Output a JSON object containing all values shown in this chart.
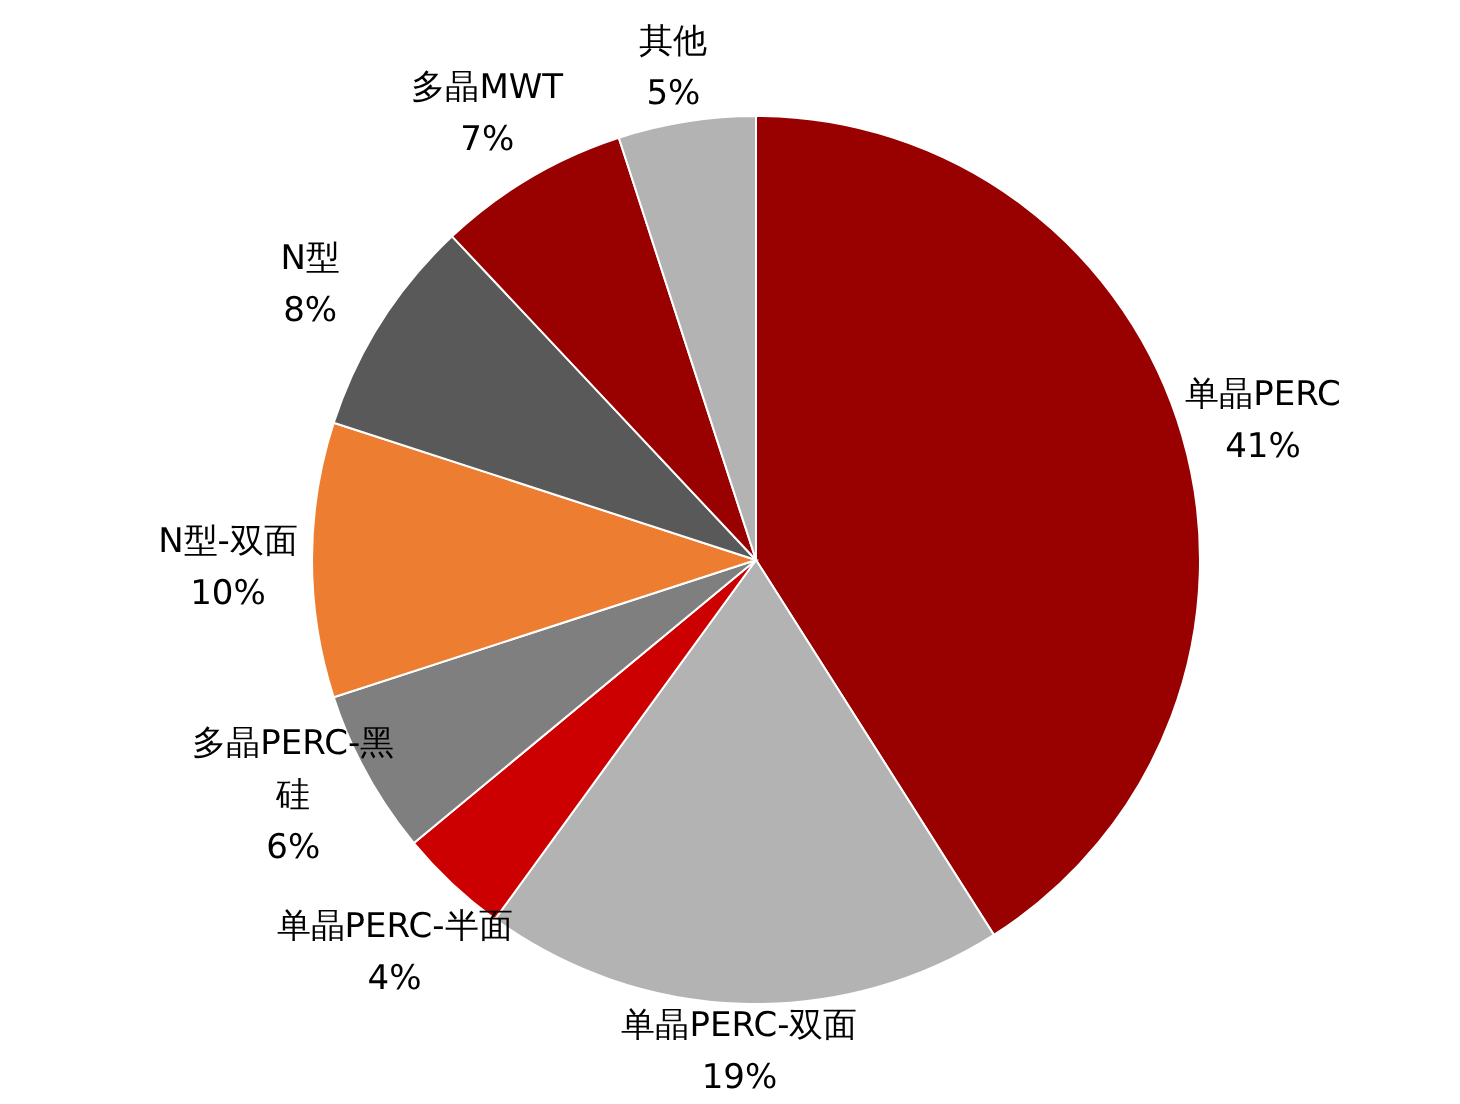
{
  "chart_data": {
    "type": "pie",
    "categories": [
      "单晶PERC",
      "单晶PERC-双面",
      "单晶PERC-半面",
      "多晶PERC-黑硅",
      "N型-双面",
      "N型",
      "多晶MWT",
      "其他"
    ],
    "values": [
      41,
      19,
      4,
      6,
      10,
      8,
      7,
      5
    ],
    "colors": [
      "#990000",
      "#b3b3b3",
      "#cc0000",
      "#7f7f7f",
      "#ed7d31",
      "#595959",
      "#990000",
      "#b3b3b3"
    ],
    "value_labels": [
      "41%",
      "19%",
      "4%",
      "6%",
      "10%",
      "8%",
      "7%",
      "5%"
    ]
  }
}
